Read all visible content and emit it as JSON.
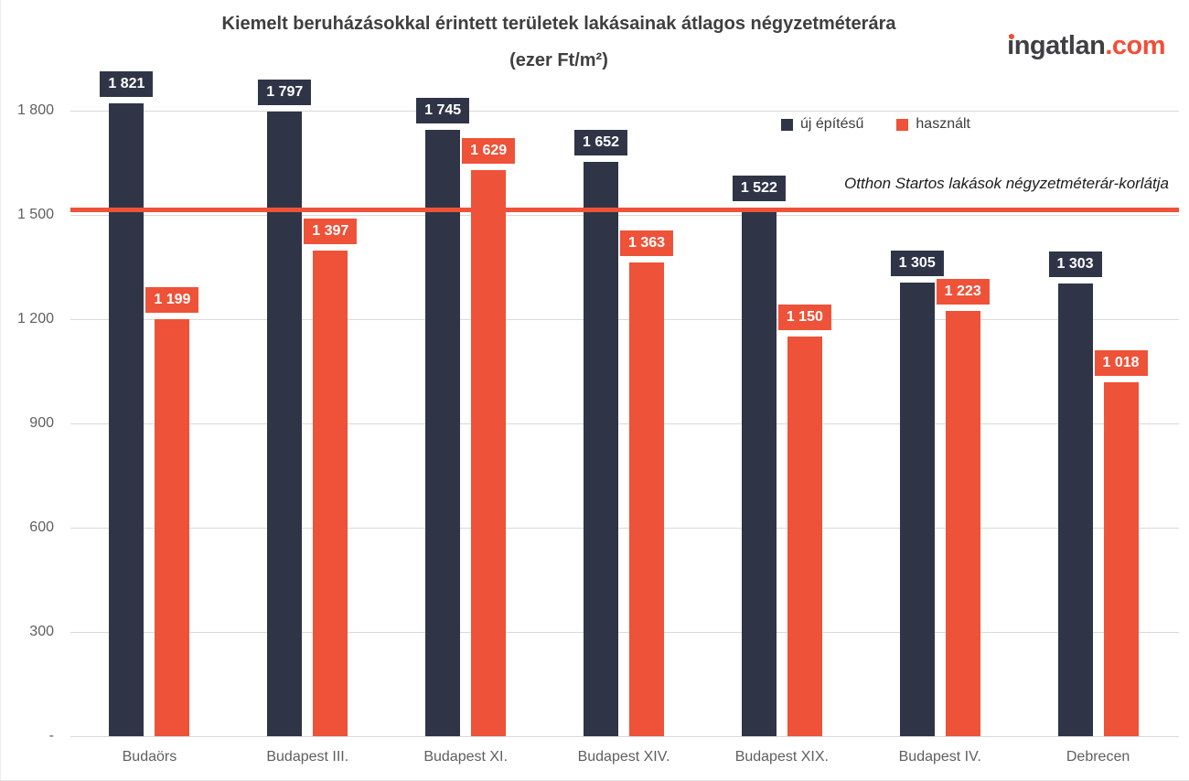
{
  "header": {
    "title_line1": "Kiemelt beruházásokkal érintett területek lakásainak átlagos négyzetméterára",
    "title_line2": "(ezer Ft/m²)",
    "logo_main": "ingatlan",
    "logo_suffix": ".com"
  },
  "colors": {
    "new_build": "#2f3547",
    "used": "#ee5238",
    "gridline": "#d9d9d9",
    "axis_text": "#5f5f5f",
    "title_text": "#3f3f3f",
    "reference_line": "#ee5238",
    "logo_dark": "#3e4043",
    "logo_orange": "#f04f38"
  },
  "chart_data": {
    "type": "bar",
    "title": "Kiemelt beruházásokkal érintett területek lakásainak átlagos négyzetméterára",
    "subtitle": "(ezer Ft/m²)",
    "categories": [
      "Budaörs",
      "Budapest III.",
      "Budapest XI.",
      "Budapest XIV.",
      "Budapest XIX.",
      "Budapest IV.",
      "Debrecen"
    ],
    "series": [
      {
        "name": "új építésű",
        "color": "#2f3547",
        "values": [
          1821,
          1797,
          1745,
          1652,
          1522,
          1305,
          1303
        ],
        "labels": [
          "1 821",
          "1 797",
          "1 745",
          "1 652",
          "1 522",
          "1 305",
          "1 303"
        ]
      },
      {
        "name": "használt",
        "color": "#ee5238",
        "values": [
          1199,
          1397,
          1629,
          1363,
          1150,
          1223,
          1018
        ],
        "labels": [
          "1 199",
          "1 397",
          "1 629",
          "1 363",
          "1 150",
          "1 223",
          "1 018"
        ]
      }
    ],
    "y_ticks": [
      {
        "value": 1800,
        "label": "1 800"
      },
      {
        "value": 1500,
        "label": "1 500"
      },
      {
        "value": 1200,
        "label": "1 200"
      },
      {
        "value": 900,
        "label": "900"
      },
      {
        "value": 600,
        "label": "600"
      },
      {
        "value": 300,
        "label": "300"
      },
      {
        "value": 0,
        "label": "-"
      }
    ],
    "ylim": [
      0,
      1800
    ],
    "grid": true,
    "legend_position": "top-right-inside",
    "reference_line": {
      "value": 1515,
      "label": "Otthon Startos lakások négyzetméterár-korlátja",
      "color": "#ee5238"
    }
  }
}
